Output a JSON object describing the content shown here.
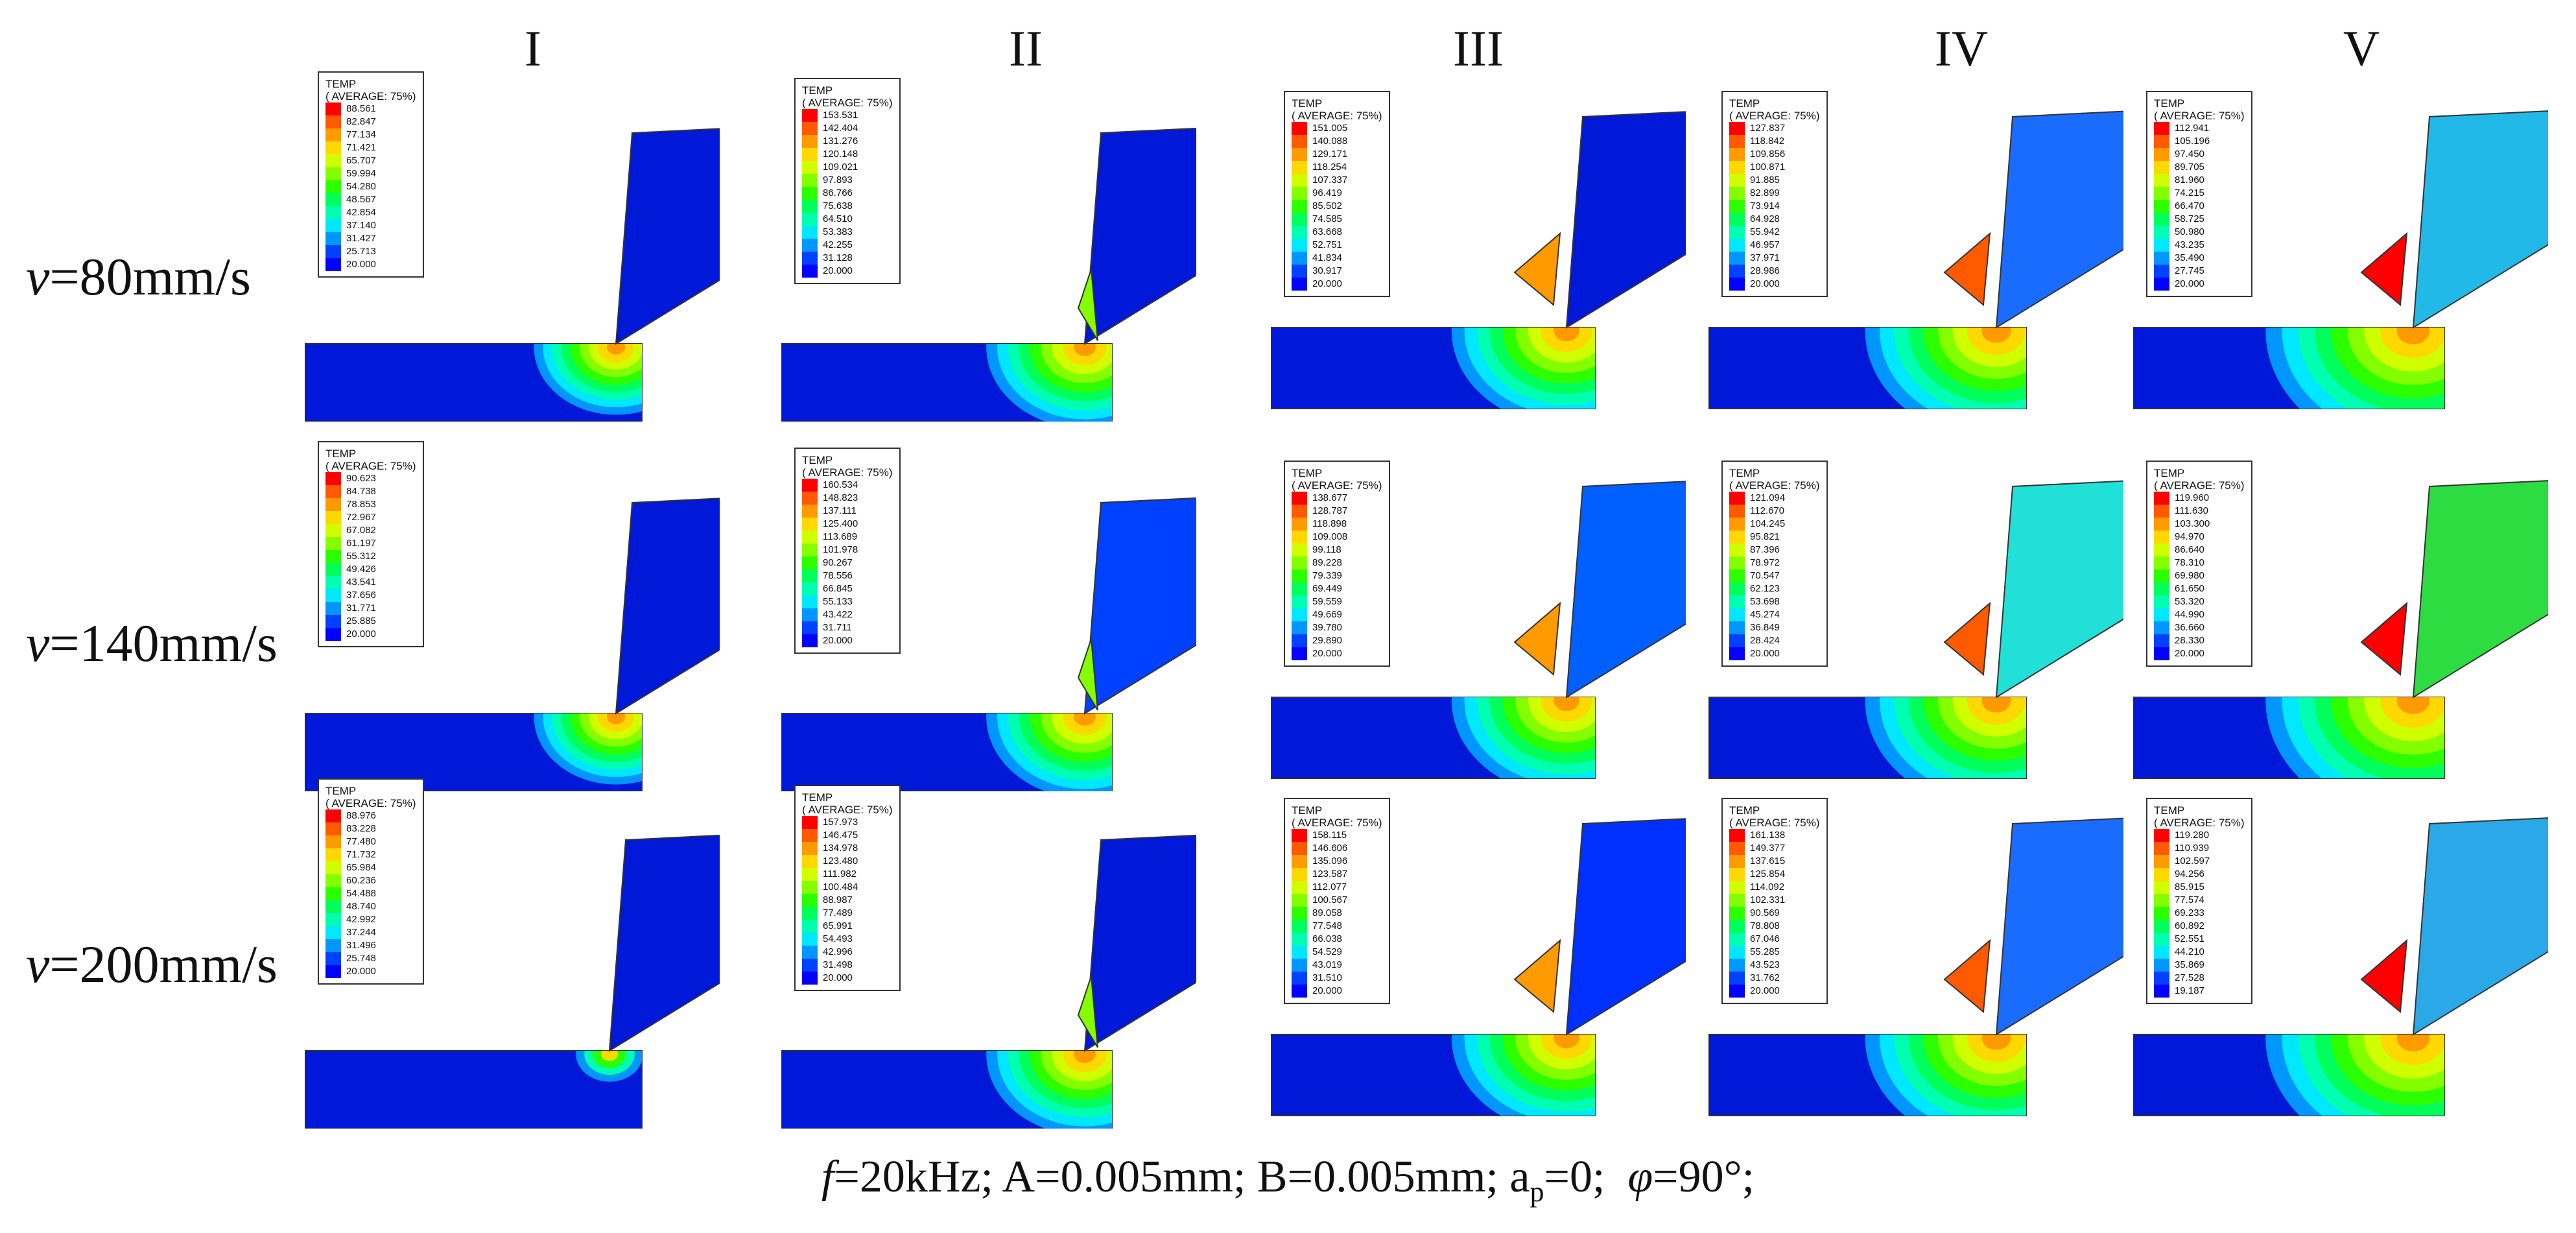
{
  "column_headers": [
    "I",
    "II",
    "III",
    "IV",
    "V"
  ],
  "row_headers": [
    {
      "var": "v",
      "rest": "=80mm/s"
    },
    {
      "var": "v",
      "rest": "=140mm/s"
    },
    {
      "var": "v",
      "rest": "=200mm/s"
    }
  ],
  "legend_title": "TEMP",
  "legend_subtitle": "( AVERAGE: 75%)",
  "legend_colors": [
    "#ff0000",
    "#ff5a00",
    "#ff9a00",
    "#ffd800",
    "#d0ff00",
    "#84ff00",
    "#2cff00",
    "#00ff5a",
    "#00ffb0",
    "#00e7ff",
    "#0096ff",
    "#0040ff",
    "#0000ff"
  ],
  "legends": [
    [
      [
        "88.561",
        "82.847",
        "77.134",
        "71.421",
        "65.707",
        "59.994",
        "54.280",
        "48.567",
        "42.854",
        "37.140",
        "31.427",
        "25.713",
        "20.000"
      ],
      [
        "153.531",
        "142.404",
        "131.276",
        "120.148",
        "109.021",
        "97.893",
        "86.766",
        "75.638",
        "64.510",
        "53.383",
        "42.255",
        "31.128",
        "20.000"
      ],
      [
        "151.005",
        "140.088",
        "129.171",
        "118.254",
        "107.337",
        "96.419",
        "85.502",
        "74.585",
        "63.668",
        "52.751",
        "41.834",
        "30.917",
        "20.000"
      ],
      [
        "127.837",
        "118.842",
        "109.856",
        "100.871",
        "91.885",
        "82.899",
        "73.914",
        "64.928",
        "55.942",
        "46.957",
        "37.971",
        "28.986",
        "20.000"
      ],
      [
        "112.941",
        "105.196",
        "97.450",
        "89.705",
        "81.960",
        "74.215",
        "66.470",
        "58.725",
        "50.980",
        "43.235",
        "35.490",
        "27.745",
        "20.000"
      ]
    ],
    [
      [
        "90.623",
        "84.738",
        "78.853",
        "72.967",
        "67.082",
        "61.197",
        "55.312",
        "49.426",
        "43.541",
        "37.656",
        "31.771",
        "25.885",
        "20.000"
      ],
      [
        "160.534",
        "148.823",
        "137.111",
        "125.400",
        "113.689",
        "101.978",
        "90.267",
        "78.556",
        "66.845",
        "55.133",
        "43.422",
        "31.711",
        "20.000"
      ],
      [
        "138.677",
        "128.787",
        "118.898",
        "109.008",
        "99.118",
        "89.228",
        "79.339",
        "69.449",
        "59.559",
        "49.669",
        "39.780",
        "29.890",
        "20.000"
      ],
      [
        "121.094",
        "112.670",
        "104.245",
        "95.821",
        "87.396",
        "78.972",
        "70.547",
        "62.123",
        "53.698",
        "45.274",
        "36.849",
        "28.424",
        "20.000"
      ],
      [
        "119.960",
        "111.630",
        "103.300",
        "94.970",
        "86.640",
        "78.310",
        "69.980",
        "61.650",
        "53.320",
        "44.990",
        "36.660",
        "28.330",
        "20.000"
      ]
    ],
    [
      [
        "88.976",
        "83.228",
        "77.480",
        "71.732",
        "65.984",
        "60.236",
        "54.488",
        "48.740",
        "42.992",
        "37.244",
        "31.496",
        "25.748",
        "20.000"
      ],
      [
        "157.973",
        "146.475",
        "134.978",
        "123.480",
        "111.982",
        "100.484",
        "88.987",
        "77.489",
        "65.991",
        "54.493",
        "42.996",
        "31.498",
        "20.000"
      ],
      [
        "158.115",
        "146.606",
        "135.096",
        "123.587",
        "112.077",
        "100.567",
        "89.058",
        "77.548",
        "66.038",
        "54.529",
        "43.019",
        "31.510",
        "20.000"
      ],
      [
        "161.138",
        "149.377",
        "137.615",
        "125.854",
        "114.092",
        "102.331",
        "90.569",
        "78.808",
        "67.046",
        "55.285",
        "43.523",
        "31.762",
        "20.000"
      ],
      [
        "119.280",
        "110.939",
        "102.597",
        "94.256",
        "85.915",
        "77.574",
        "69.233",
        "60.892",
        "52.551",
        "44.210",
        "35.869",
        "27.528",
        "19.187"
      ]
    ]
  ],
  "caption": {
    "f_var": "f",
    "f_rest": "=20kHz; A=0.005mm; B=0.005mm; a",
    "a_sub": "p",
    "a_rest": "=0;",
    "phi_var": "φ",
    "phi_rest": "=90°;"
  }
}
